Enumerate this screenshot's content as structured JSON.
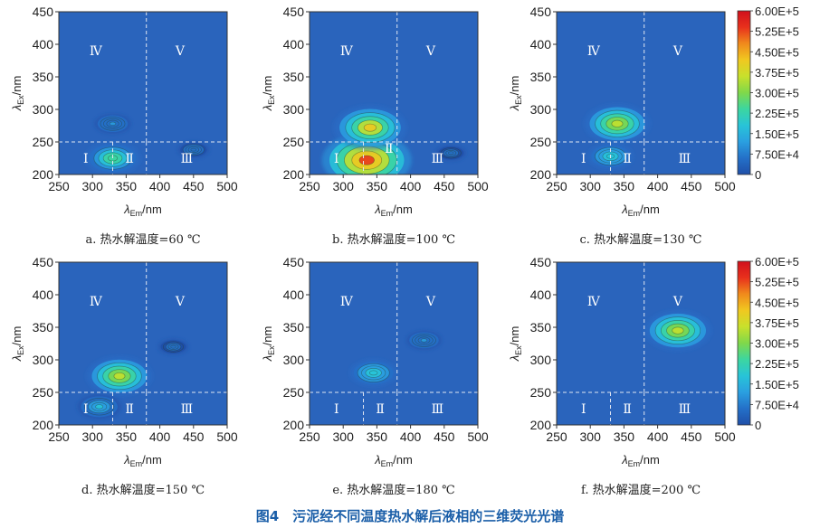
{
  "figure_title": "图4　污泥经不同温度热水解后液相的三维荧光光谱",
  "colors": {
    "background": "#2a64bc",
    "divider": "#dfe6f2",
    "title": "#1a5ea8",
    "colormap": [
      "#1f4fa8",
      "#2470c8",
      "#2a9fe0",
      "#28c4d8",
      "#3cd6a0",
      "#80d84a",
      "#c8e02c",
      "#f0c820",
      "#f08a1c",
      "#e8301c",
      "#d0101c"
    ]
  },
  "chart_data": [
    {
      "type": "heatmap",
      "id": "a",
      "caption": "a. 热水解温度=60 ℃",
      "xlabel": {
        "symbol": "λ",
        "sub": "Em",
        "unit": "/nm"
      },
      "ylabel": {
        "symbol": "λ",
        "sub": "Ex",
        "unit": "/nm"
      },
      "xlim": [
        250,
        500
      ],
      "ylim": [
        200,
        450
      ],
      "xticks": [
        "250",
        "300",
        "350",
        "400",
        "450",
        "500"
      ],
      "yticks": [
        "200",
        "250",
        "300",
        "350",
        "400",
        "450"
      ],
      "dividers": {
        "ex": 250,
        "em_upper": 380,
        "em_lower": [
          330,
          380
        ]
      },
      "regions": [
        {
          "label": "Ⅰ",
          "em": 290,
          "ex": 225
        },
        {
          "label": "Ⅱ",
          "em": 355,
          "ex": 225
        },
        {
          "label": "Ⅲ",
          "em": 440,
          "ex": 225
        },
        {
          "label": "Ⅳ",
          "em": 305,
          "ex": 390
        },
        {
          "label": "Ⅴ",
          "em": 430,
          "ex": 390
        }
      ],
      "peaks": [
        {
          "em": 330,
          "ex": 225,
          "intensity": 260000.0
        },
        {
          "em": 330,
          "ex": 278,
          "intensity": 100000.0
        },
        {
          "em": 450,
          "ex": 238,
          "intensity": 60000.0
        }
      ]
    },
    {
      "type": "heatmap",
      "id": "b",
      "caption": "b. 热水解温度=100 ℃",
      "xlabel": {
        "symbol": "λ",
        "sub": "Em",
        "unit": "/nm"
      },
      "ylabel": {
        "symbol": "λ",
        "sub": "Ex",
        "unit": "/nm"
      },
      "xlim": [
        250,
        500
      ],
      "ylim": [
        200,
        450
      ],
      "xticks": [
        "250",
        "300",
        "350",
        "400",
        "450",
        "500"
      ],
      "yticks": [
        "200",
        "250",
        "300",
        "350",
        "400",
        "450"
      ],
      "dividers": {
        "ex": 250,
        "em_upper": 380,
        "em_lower": [
          330,
          380
        ]
      },
      "regions": [
        {
          "label": "Ⅰ",
          "em": 290,
          "ex": 225
        },
        {
          "label": "Ⅱ",
          "em": 368,
          "ex": 240
        },
        {
          "label": "Ⅲ",
          "em": 440,
          "ex": 225
        },
        {
          "label": "Ⅳ",
          "em": 305,
          "ex": 390
        },
        {
          "label": "Ⅴ",
          "em": 430,
          "ex": 390
        }
      ],
      "peaks": [
        {
          "em": 335,
          "ex": 222,
          "intensity": 530000.0
        },
        {
          "em": 340,
          "ex": 272,
          "intensity": 400000.0
        },
        {
          "em": 460,
          "ex": 233,
          "intensity": 50000.0
        }
      ]
    },
    {
      "type": "heatmap",
      "id": "c",
      "caption": "c. 热水解温度=130 ℃",
      "xlabel": {
        "symbol": "λ",
        "sub": "Em",
        "unit": "/nm"
      },
      "ylabel": {
        "symbol": "λ",
        "sub": "Ex",
        "unit": "/nm"
      },
      "xlim": [
        250,
        500
      ],
      "ylim": [
        200,
        450
      ],
      "xticks": [
        "250",
        "300",
        "350",
        "400",
        "450",
        "500"
      ],
      "yticks": [
        "200",
        "250",
        "300",
        "350",
        "400",
        "450"
      ],
      "dividers": {
        "ex": 250,
        "em_upper": 380,
        "em_lower": [
          330,
          380
        ]
      },
      "regions": [
        {
          "label": "Ⅰ",
          "em": 290,
          "ex": 225
        },
        {
          "label": "Ⅱ",
          "em": 355,
          "ex": 225
        },
        {
          "label": "Ⅲ",
          "em": 440,
          "ex": 225
        },
        {
          "label": "Ⅳ",
          "em": 305,
          "ex": 390
        },
        {
          "label": "Ⅴ",
          "em": 430,
          "ex": 390
        }
      ],
      "peaks": [
        {
          "em": 340,
          "ex": 278,
          "intensity": 340000.0
        },
        {
          "em": 330,
          "ex": 228,
          "intensity": 180000.0
        }
      ],
      "colorbar": {
        "ticks": [
          "6.00E+5",
          "5.25E+5",
          "4.50E+5",
          "3.75E+5",
          "3.00E+5",
          "2.25E+5",
          "1.50E+5",
          "7.50E+4",
          "0"
        ],
        "values": [
          600000.0,
          525000.0,
          450000.0,
          375000.0,
          300000.0,
          225000.0,
          150000.0,
          75000.0,
          0
        ]
      }
    },
    {
      "type": "heatmap",
      "id": "d",
      "caption": "d. 热水解温度=150 ℃",
      "xlabel": {
        "symbol": "λ",
        "sub": "Em",
        "unit": "/nm"
      },
      "ylabel": {
        "symbol": "λ",
        "sub": "Ex",
        "unit": "/nm"
      },
      "xlim": [
        250,
        500
      ],
      "ylim": [
        200,
        450
      ],
      "xticks": [
        "250",
        "300",
        "350",
        "400",
        "450",
        "500"
      ],
      "yticks": [
        "200",
        "250",
        "300",
        "350",
        "400",
        "450"
      ],
      "dividers": {
        "ex": 250,
        "em_upper": 380,
        "em_lower": [
          330,
          380
        ]
      },
      "regions": [
        {
          "label": "Ⅰ",
          "em": 290,
          "ex": 225
        },
        {
          "label": "Ⅱ",
          "em": 355,
          "ex": 225
        },
        {
          "label": "Ⅲ",
          "em": 440,
          "ex": 225
        },
        {
          "label": "Ⅳ",
          "em": 305,
          "ex": 390
        },
        {
          "label": "Ⅴ",
          "em": 430,
          "ex": 390
        }
      ],
      "peaks": [
        {
          "em": 340,
          "ex": 275,
          "intensity": 340000.0
        },
        {
          "em": 310,
          "ex": 228,
          "intensity": 160000.0
        },
        {
          "em": 420,
          "ex": 320,
          "intensity": 50000.0
        }
      ]
    },
    {
      "type": "heatmap",
      "id": "e",
      "caption": "e. 热水解温度=180 ℃",
      "xlabel": {
        "symbol": "λ",
        "sub": "Em",
        "unit": "/nm"
      },
      "ylabel": {
        "symbol": "λ",
        "sub": "Ex",
        "unit": "/nm"
      },
      "xlim": [
        250,
        500
      ],
      "ylim": [
        200,
        450
      ],
      "xticks": [
        "250",
        "300",
        "350",
        "400",
        "450",
        "500"
      ],
      "yticks": [
        "200",
        "250",
        "300",
        "350",
        "400",
        "450"
      ],
      "dividers": {
        "ex": 250,
        "em_upper": 380,
        "em_lower": [
          330,
          380
        ]
      },
      "regions": [
        {
          "label": "Ⅰ",
          "em": 290,
          "ex": 225
        },
        {
          "label": "Ⅱ",
          "em": 355,
          "ex": 225
        },
        {
          "label": "Ⅲ",
          "em": 440,
          "ex": 225
        },
        {
          "label": "Ⅳ",
          "em": 305,
          "ex": 390
        },
        {
          "label": "Ⅴ",
          "em": 430,
          "ex": 390
        }
      ],
      "peaks": [
        {
          "em": 345,
          "ex": 280,
          "intensity": 190000.0
        },
        {
          "em": 420,
          "ex": 330,
          "intensity": 90000.0
        }
      ]
    },
    {
      "type": "heatmap",
      "id": "f",
      "caption": "f. 热水解温度=200 ℃",
      "xlabel": {
        "symbol": "λ",
        "sub": "Em",
        "unit": "/nm"
      },
      "ylabel": {
        "symbol": "λ",
        "sub": "Ex",
        "unit": "/nm"
      },
      "xlim": [
        250,
        500
      ],
      "ylim": [
        200,
        450
      ],
      "xticks": [
        "250",
        "300",
        "350",
        "400",
        "450",
        "500"
      ],
      "yticks": [
        "200",
        "250",
        "300",
        "350",
        "400",
        "450"
      ],
      "dividers": {
        "ex": 250,
        "em_upper": 380,
        "em_lower": [
          330,
          380
        ]
      },
      "regions": [
        {
          "label": "Ⅰ",
          "em": 290,
          "ex": 225
        },
        {
          "label": "Ⅱ",
          "em": 355,
          "ex": 225
        },
        {
          "label": "Ⅲ",
          "em": 440,
          "ex": 225
        },
        {
          "label": "Ⅳ",
          "em": 305,
          "ex": 390
        },
        {
          "label": "Ⅴ",
          "em": 430,
          "ex": 390
        }
      ],
      "peaks": [
        {
          "em": 430,
          "ex": 345,
          "intensity": 350000.0
        }
      ],
      "colorbar": {
        "ticks": [
          "6.00E+5",
          "5.25E+5",
          "4.50E+5",
          "3.75E+5",
          "3.00E+5",
          "2.25E+5",
          "1.50E+5",
          "7.50E+4",
          "0"
        ],
        "values": [
          600000.0,
          525000.0,
          450000.0,
          375000.0,
          300000.0,
          225000.0,
          150000.0,
          75000.0,
          0
        ]
      }
    }
  ]
}
